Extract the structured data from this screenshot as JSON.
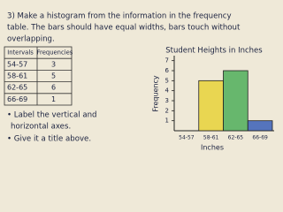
{
  "problem": {
    "lines": [
      "3) Make a histogram from the information in the frequency",
      "table. The bars should have equal widths, bars touch without",
      "overlapping."
    ]
  },
  "table": {
    "header": [
      "Intervals",
      "Frequencies"
    ],
    "rows": [
      [
        "54-57",
        "3"
      ],
      [
        "58-61",
        "5"
      ],
      [
        "62-65",
        "6"
      ],
      [
        "66-69",
        "1"
      ]
    ]
  },
  "notes": [
    "• Label the vertical and",
    "horizontal axes.",
    "• Give it a title above."
  ],
  "chart_data": {
    "type": "histogram",
    "title": "Student Heights in Inches",
    "y_label": "Frequency",
    "x_label": "Inches",
    "categories": [
      "54-57",
      "58-61",
      "62-65",
      "66-69"
    ],
    "values": [
      null,
      5,
      6,
      1
    ],
    "colors": [
      "#d94b4b",
      "#e8d23a",
      "#4fae5a",
      "#3a5fb8"
    ],
    "ylim": [
      0,
      7.5
    ],
    "yticks": [
      1,
      2,
      3,
      4,
      5,
      6,
      7
    ]
  }
}
